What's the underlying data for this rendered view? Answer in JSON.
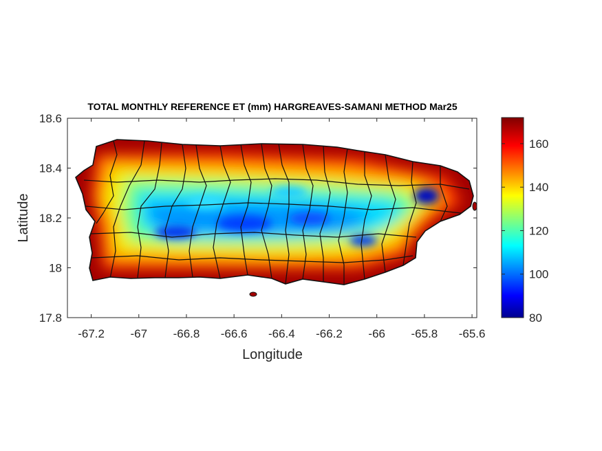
{
  "chart_data": {
    "type": "heatmap",
    "title": "TOTAL MONTHLY REFERENCE ET (mm) HARGREAVES-SAMANI METHOD Mar25",
    "xlabel": "Longitude",
    "ylabel": "Latitude",
    "xlim": [
      -67.3,
      -65.58
    ],
    "ylim": [
      17.8,
      18.6
    ],
    "x_ticks": [
      -67.2,
      -67,
      -66.8,
      -66.6,
      -66.4,
      -66.2,
      -66,
      -65.8,
      -65.6
    ],
    "y_ticks": [
      17.8,
      18,
      18.2,
      18.4,
      18.6
    ],
    "x_tick_labels": [
      "-67.2",
      "-67",
      "-66.8",
      "-66.6",
      "-66.4",
      "-66.2",
      "-66",
      "-65.8",
      "-65.6"
    ],
    "y_tick_labels": [
      "17.8",
      "18",
      "18.2",
      "18.4",
      "18.6"
    ],
    "colorbar": {
      "colormap": "jet",
      "range": [
        80,
        172
      ],
      "ticks": [
        80,
        100,
        120,
        140,
        160
      ],
      "tick_labels": [
        "80",
        "100",
        "120",
        "140",
        "160"
      ]
    },
    "region": "Puerto Rico",
    "spatial_pattern": "Highest values (~165-172) along northern, southern and western coasts; lowest values (~85-105) along the central mountain ridge and in the northeast highlands near -65.8 lon, 18.3 lat.",
    "grid": false,
    "municipal_boundaries": true
  }
}
